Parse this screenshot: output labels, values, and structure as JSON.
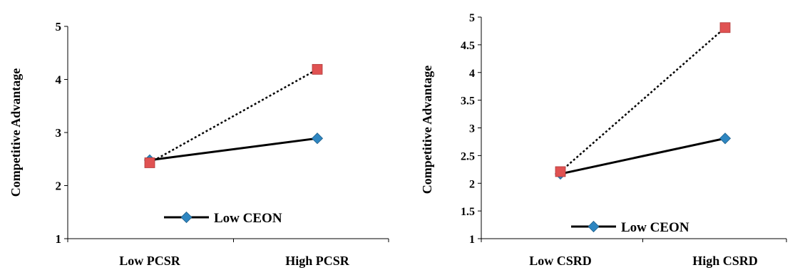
{
  "chart_data": [
    {
      "type": "line",
      "categories": [
        "Low PCSR",
        "High PCSR"
      ],
      "ylabel": "Competitive Advantage",
      "xlabel": "",
      "ylim": [
        1,
        5
      ],
      "yticks": [
        "1",
        "2",
        "3",
        "4",
        "5"
      ],
      "grid": false,
      "legend_position": "bottom-center",
      "series": [
        {
          "name": "Low CEON",
          "values": [
            2.48,
            2.89
          ],
          "color": "#2E86C1",
          "line_color": "#000000",
          "line_style": "solid",
          "marker": "diamond"
        },
        {
          "name": "",
          "values": [
            2.43,
            4.19
          ],
          "color": "#E05252",
          "line_color": "#000000",
          "line_style": "dotted",
          "marker": "square"
        }
      ]
    },
    {
      "type": "line",
      "categories": [
        "Low CSRD",
        "High CSRD"
      ],
      "ylabel": "Competitive Advantage",
      "xlabel": "",
      "ylim": [
        1,
        5
      ],
      "yticks": [
        "1",
        "1.5",
        "2",
        "2.5",
        "3",
        "3.5",
        "4",
        "4.5",
        "5"
      ],
      "grid": false,
      "legend_position": "bottom-center",
      "series": [
        {
          "name": "Low CEON",
          "values": [
            2.17,
            2.81
          ],
          "color": "#2E86C1",
          "line_color": "#000000",
          "line_style": "solid",
          "marker": "diamond"
        },
        {
          "name": "",
          "values": [
            2.21,
            4.81
          ],
          "color": "#E05252",
          "line_color": "#000000",
          "line_style": "dotted",
          "marker": "square"
        }
      ]
    }
  ]
}
